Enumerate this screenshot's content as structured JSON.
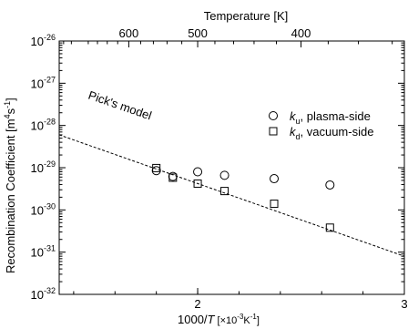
{
  "chart_data": {
    "type": "scatter",
    "xlabel_prefix": "1000/",
    "xlabel_var": "T",
    "xlabel_unit_open": " [",
    "xlabel_unit_mult": "×10",
    "xlabel_unit_exp": "-3",
    "xlabel_unit_K": "K",
    "xlabel_unit_kexp": "-1",
    "xlabel_unit_close": "]",
    "ylabel_text": "Recombination  Coefficient  [m",
    "ylabel_exp1": "4",
    "ylabel_s": "s",
    "ylabel_exp2": "-1",
    "ylabel_close": "]",
    "top_xlabel": "Temperature  [K]",
    "xlim": [
      1.33,
      3.0
    ],
    "ylim_log10": [
      -32,
      -26
    ],
    "y_scale": "log",
    "x_ticks": [
      {
        "value": 2,
        "label": "2"
      },
      {
        "value": 3,
        "label": "3"
      }
    ],
    "y_ticks": [
      {
        "exp": -26,
        "base": "10",
        "sup": "-26"
      },
      {
        "exp": -27,
        "base": "10",
        "sup": "-27"
      },
      {
        "exp": -28,
        "base": "10",
        "sup": "-28"
      },
      {
        "exp": -29,
        "base": "10",
        "sup": "-29"
      },
      {
        "exp": -30,
        "base": "10",
        "sup": "-30"
      },
      {
        "exp": -31,
        "base": "10",
        "sup": "-31"
      },
      {
        "exp": -32,
        "base": "10",
        "sup": "-32"
      }
    ],
    "top_ticks": [
      {
        "temperature": 600,
        "label": "600"
      },
      {
        "temperature": 500,
        "label": "500"
      },
      {
        "temperature": 400,
        "label": "400"
      }
    ],
    "series": [
      {
        "marker": "circle",
        "legend_k": "k",
        "legend_sub": "u",
        "legend_rest": ",  plasma-side",
        "points": [
          {
            "x": 1.8,
            "y": 8.5e-30
          },
          {
            "x": 1.88,
            "y": 6.2e-30
          },
          {
            "x": 2.0,
            "y": 8e-30
          },
          {
            "x": 2.13,
            "y": 6.6e-30
          },
          {
            "x": 2.37,
            "y": 5.5e-30
          },
          {
            "x": 2.64,
            "y": 3.9e-30
          }
        ]
      },
      {
        "marker": "square",
        "legend_k": "k",
        "legend_sub": "d",
        "legend_rest": ",  vacuum-side",
        "points": [
          {
            "x": 1.8,
            "y": 9.8e-30
          },
          {
            "x": 1.88,
            "y": 5.8e-30
          },
          {
            "x": 2.0,
            "y": 4.2e-30
          },
          {
            "x": 2.13,
            "y": 2.8e-30
          },
          {
            "x": 2.37,
            "y": 1.4e-30
          },
          {
            "x": 2.64,
            "y": 3.8e-31
          }
        ]
      }
    ],
    "model_line": {
      "label": "Pick's  model",
      "start": {
        "x": 1.33,
        "y": 6e-29
      },
      "end": {
        "x": 3.0,
        "y": 8e-32
      }
    }
  }
}
